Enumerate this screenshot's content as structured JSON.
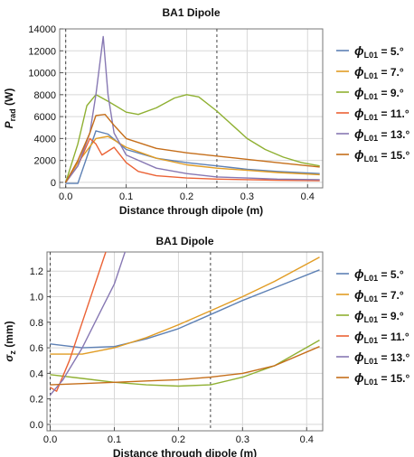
{
  "chart_data": [
    {
      "type": "line",
      "title": "BA1 Dipole",
      "xlabel": "Distance through dipole (m)",
      "ylabel_main": "P",
      "ylabel_sub": "rad",
      "ylabel_unit": " (W)",
      "xlim": [
        -0.01,
        0.425
      ],
      "ylim": [
        -500,
        14000
      ],
      "xticks": [
        0.0,
        0.1,
        0.2,
        0.3,
        0.4
      ],
      "xtick_labels": [
        "0.0",
        "0.1",
        "0.2",
        "0.3",
        "0.4"
      ],
      "yticks": [
        0,
        2000,
        4000,
        6000,
        8000,
        10000,
        12000,
        14000
      ],
      "ytick_labels": [
        "0",
        "2000",
        "4000",
        "6000",
        "8000",
        "10000",
        "12000",
        "14000"
      ],
      "vlines": [
        0.0,
        0.25
      ],
      "legend_placement": "right",
      "series": [
        {
          "name": "5.°",
          "color": "#5e81b5",
          "x": [
            0,
            0.02,
            0.05,
            0.07,
            0.1,
            0.15,
            0.2,
            0.25,
            0.3,
            0.35,
            0.42
          ],
          "y": [
            -100,
            -100,
            4700,
            4400,
            3000,
            2200,
            1800,
            1500,
            1200,
            1000,
            800
          ]
        },
        {
          "name": "7.°",
          "color": "#e19c24",
          "x": [
            0,
            0.02,
            0.05,
            0.07,
            0.1,
            0.15,
            0.2,
            0.25,
            0.3,
            0.35,
            0.42
          ],
          "y": [
            0,
            1800,
            4000,
            4200,
            3200,
            2200,
            1600,
            1300,
            1100,
            900,
            700
          ]
        },
        {
          "name": "9.°",
          "color": "#8fb032",
          "x": [
            0,
            0.02,
            0.035,
            0.05,
            0.07,
            0.1,
            0.12,
            0.15,
            0.18,
            0.2,
            0.22,
            0.25,
            0.28,
            0.3,
            0.33,
            0.36,
            0.39,
            0.42
          ],
          "y": [
            0,
            3500,
            7000,
            8000,
            7400,
            6400,
            6200,
            6800,
            7700,
            8000,
            7800,
            6500,
            5000,
            4000,
            3000,
            2300,
            1800,
            1500
          ]
        },
        {
          "name": "11.°",
          "color": "#eb6235",
          "x": [
            0,
            0.02,
            0.04,
            0.05,
            0.06,
            0.08,
            0.1,
            0.12,
            0.15,
            0.2,
            0.25,
            0.3,
            0.35,
            0.42
          ],
          "y": [
            0,
            1500,
            4000,
            3500,
            2500,
            3200,
            1800,
            1000,
            600,
            400,
            300,
            250,
            200,
            150
          ]
        },
        {
          "name": "13.°",
          "color": "#8778b3",
          "x": [
            0,
            0.02,
            0.04,
            0.05,
            0.062,
            0.07,
            0.08,
            0.1,
            0.15,
            0.2,
            0.25,
            0.3,
            0.35,
            0.42
          ],
          "y": [
            0,
            1500,
            4500,
            8000,
            13300,
            8000,
            4500,
            2500,
            1300,
            800,
            500,
            400,
            300,
            250
          ]
        },
        {
          "name": "15.°",
          "color": "#c56e1a",
          "x": [
            0,
            0.02,
            0.04,
            0.05,
            0.065,
            0.08,
            0.1,
            0.15,
            0.2,
            0.25,
            0.3,
            0.35,
            0.42
          ],
          "y": [
            0,
            2000,
            4500,
            6100,
            6200,
            5200,
            4000,
            3100,
            2700,
            2400,
            2100,
            1800,
            1400
          ]
        }
      ]
    },
    {
      "type": "line",
      "title": "BA1 Dipole",
      "xlabel": "Distance through dipole (m)",
      "ylabel_main": "σ",
      "ylabel_sub": "z",
      "ylabel_unit": " (mm)",
      "xlim": [
        -0.005,
        0.425
      ],
      "ylim": [
        -0.05,
        1.35
      ],
      "xticks": [
        0.0,
        0.1,
        0.2,
        0.3,
        0.4
      ],
      "xtick_labels": [
        "0.0",
        "0.1",
        "0.2",
        "0.3",
        "0.4"
      ],
      "yticks": [
        0.0,
        0.2,
        0.4,
        0.6,
        0.8,
        1.0,
        1.2
      ],
      "ytick_labels": [
        "0.0",
        "0.2",
        "0.4",
        "0.6",
        "0.8",
        "1.0",
        "1.2"
      ],
      "vlines": [
        0.0,
        0.25
      ],
      "legend_placement": "right",
      "series": [
        {
          "name": "5.°",
          "color": "#5e81b5",
          "x": [
            0,
            0.05,
            0.1,
            0.15,
            0.2,
            0.25,
            0.3,
            0.35,
            0.42
          ],
          "y": [
            0.63,
            0.6,
            0.61,
            0.67,
            0.75,
            0.86,
            0.97,
            1.07,
            1.21
          ]
        },
        {
          "name": "7.°",
          "color": "#e19c24",
          "x": [
            0,
            0.05,
            0.1,
            0.15,
            0.2,
            0.25,
            0.3,
            0.35,
            0.42
          ],
          "y": [
            0.55,
            0.55,
            0.6,
            0.68,
            0.78,
            0.89,
            1.0,
            1.12,
            1.31
          ]
        },
        {
          "name": "9.°",
          "color": "#8fb032",
          "x": [
            0,
            0.05,
            0.1,
            0.15,
            0.2,
            0.25,
            0.3,
            0.35,
            0.42
          ],
          "y": [
            0.39,
            0.36,
            0.33,
            0.31,
            0.3,
            0.31,
            0.37,
            0.46,
            0.66
          ]
        },
        {
          "name": "11.°",
          "color": "#eb6235",
          "x": [
            0,
            0.01,
            0.03,
            0.05,
            0.07,
            0.09
          ],
          "y": [
            0.29,
            0.26,
            0.5,
            0.8,
            1.1,
            1.4
          ]
        },
        {
          "name": "13.°",
          "color": "#8778b3",
          "x": [
            0,
            0.02,
            0.05,
            0.08,
            0.1,
            0.12
          ],
          "y": [
            0.23,
            0.35,
            0.6,
            0.9,
            1.1,
            1.4
          ]
        },
        {
          "name": "15.°",
          "color": "#c56e1a",
          "x": [
            0,
            0.05,
            0.1,
            0.15,
            0.2,
            0.25,
            0.3,
            0.35,
            0.42
          ],
          "y": [
            0.31,
            0.32,
            0.33,
            0.34,
            0.35,
            0.37,
            0.4,
            0.46,
            0.61
          ]
        }
      ]
    }
  ],
  "legend_symbol": "ϕ",
  "legend_sub": "L01",
  "legend_eq": " = "
}
